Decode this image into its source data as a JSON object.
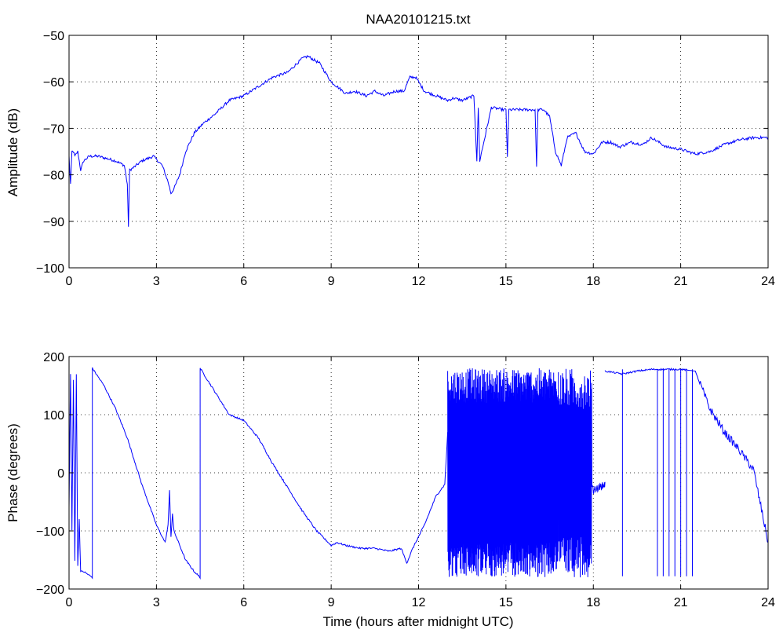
{
  "title": "NAA20101215.txt",
  "colors": {
    "series": "#0000ff",
    "axes": "#000000",
    "background": "#ffffff"
  },
  "chart_data": [
    {
      "type": "line",
      "ylabel": "Amplitude (dB)",
      "xlabel": "",
      "xlim": [
        0,
        24
      ],
      "ylim": [
        -100,
        -50
      ],
      "xticks": [
        0,
        3,
        6,
        9,
        12,
        15,
        18,
        21,
        24
      ],
      "yticks": [
        -100,
        -90,
        -80,
        -70,
        -60,
        -50
      ],
      "ytick_labels": [
        "−100",
        "−90",
        "−80",
        "−70",
        "−60",
        "−50"
      ],
      "grid": true,
      "series": [
        {
          "x": [
            0.0,
            0.05,
            0.1,
            0.15,
            0.2,
            0.3,
            0.4,
            0.45,
            0.5,
            0.7,
            1.0,
            1.3,
            1.6,
            1.9,
            2.0,
            2.04,
            2.08,
            2.2,
            2.5,
            2.9,
            3.2,
            3.4,
            3.5,
            3.6,
            3.8,
            4.0,
            4.3,
            4.6,
            5.0,
            5.5,
            6.0,
            6.5,
            7.0,
            7.5,
            8.0,
            8.2,
            8.6,
            9.0,
            9.5,
            9.8,
            10.2,
            10.5,
            10.8,
            11.2,
            11.5,
            11.7,
            11.9,
            12.2,
            12.6,
            13.0,
            13.2,
            13.5,
            13.9,
            14.0,
            14.05,
            14.1,
            14.5,
            14.9,
            15.0,
            15.05,
            15.1,
            15.5,
            16.0,
            16.05,
            16.1,
            16.3,
            16.5,
            16.7,
            16.9,
            17.1,
            17.4,
            17.7,
            18.0,
            18.3,
            18.6,
            18.9,
            19.3,
            19.7,
            20.0,
            20.5,
            21.0,
            21.5,
            22.0,
            22.5,
            23.0,
            23.5,
            24.0
          ],
          "y": [
            -76,
            -82,
            -75,
            -75,
            -76,
            -75,
            -79,
            -78,
            -77,
            -76,
            -76,
            -76.5,
            -77,
            -78,
            -82,
            -91,
            -79,
            -78.5,
            -77,
            -76,
            -78,
            -81.5,
            -84,
            -83,
            -80,
            -75,
            -71,
            -69,
            -67,
            -64,
            -63,
            -61,
            -59,
            -58,
            -55,
            -54.5,
            -56,
            -60,
            -62.5,
            -62,
            -63,
            -62,
            -63,
            -62,
            -62,
            -59,
            -59,
            -62,
            -63,
            -64,
            -63.5,
            -64,
            -63,
            -77,
            -65.5,
            -77,
            -65.5,
            -66,
            -66,
            -76,
            -66,
            -66,
            -66,
            -78,
            -66,
            -66,
            -67.5,
            -75,
            -78,
            -72,
            -71,
            -75,
            -75.5,
            -73,
            -73,
            -74,
            -73,
            -73.5,
            -72,
            -74,
            -74.5,
            -75.5,
            -75,
            -73.5,
            -72.5,
            -72,
            -72
          ]
        }
      ]
    },
    {
      "type": "line",
      "ylabel": "Phase (degrees)",
      "xlabel": "Time (hours after midnight UTC)",
      "xlim": [
        0,
        24
      ],
      "ylim": [
        -200,
        200
      ],
      "xticks": [
        0,
        3,
        6,
        9,
        12,
        15,
        18,
        21,
        24
      ],
      "yticks": [
        -200,
        -100,
        0,
        100,
        200
      ],
      "ytick_labels": [
        "−200",
        "−100",
        "0",
        "100",
        "200"
      ],
      "grid": true,
      "series": [
        {
          "x": [
            0.0,
            0.05,
            0.1,
            0.15,
            0.2,
            0.25,
            0.3,
            0.35,
            0.4,
            0.5,
            0.65,
            0.8,
            0.8,
            1.2,
            1.6,
            2.0,
            2.5,
            3.0,
            3.3,
            3.4,
            3.45,
            3.5,
            3.55,
            3.6,
            4.0,
            4.3,
            4.5,
            4.5,
            5.0,
            5.5,
            6.0,
            6.5,
            7.0,
            7.5,
            8.0,
            8.5,
            9.0,
            9.2,
            9.5,
            10.0,
            10.5,
            11.0,
            11.4,
            11.6,
            11.8,
            12.2,
            12.6,
            12.9,
            13.0
          ],
          "y": [
            -60,
            170,
            -100,
            160,
            -150,
            170,
            -160,
            -80,
            -170,
            -170,
            -175,
            -180,
            180,
            150,
            110,
            60,
            -20,
            -90,
            -120,
            -90,
            -30,
            -110,
            -70,
            -100,
            -150,
            -170,
            -180,
            180,
            140,
            100,
            90,
            60,
            15,
            -25,
            -65,
            -100,
            -125,
            -120,
            -125,
            -130,
            -130,
            -135,
            -130,
            -155,
            -130,
            -90,
            -40,
            -20,
            70
          ]
        },
        {
          "x": [
            13.0,
            16.8
          ],
          "y": [
            -180,
            180
          ],
          "style": "noise-band"
        },
        {
          "x": [
            16.8,
            17.2,
            17.6,
            17.9,
            18.0,
            18.2,
            18.4
          ],
          "y": [
            -10,
            0,
            -10,
            -20,
            -30,
            -25,
            -20
          ],
          "style": "noise-band-then-line"
        },
        {
          "x": [
            18.4,
            19.0,
            19.5,
            20.0,
            20.5,
            21.0,
            21.5,
            22.0,
            22.5,
            23.0,
            23.5,
            24.0
          ],
          "y": [
            175,
            170,
            175,
            178,
            178,
            178,
            175,
            110,
            70,
            40,
            5,
            -120
          ]
        }
      ]
    }
  ]
}
